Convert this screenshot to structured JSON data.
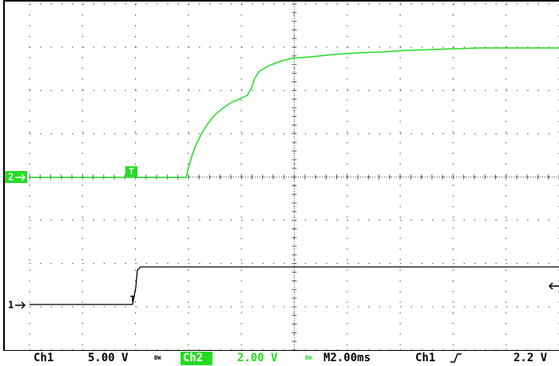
{
  "screen": {
    "ch2_marker": "2",
    "ch1_marker": "1",
    "trigger_marker": "T",
    "trigger_point": "T"
  },
  "status_bar": {
    "ch1_label": "Ch1",
    "ch1_scale": "5.00 V",
    "ch1_bw": "BW",
    "ch2_label": "Ch2",
    "ch2_scale": "2.00 V",
    "ch2_bw": "BW",
    "timebase": "M2.00ms",
    "trigger_source": "Ch1",
    "trigger_level": "2.2 V"
  }
}
